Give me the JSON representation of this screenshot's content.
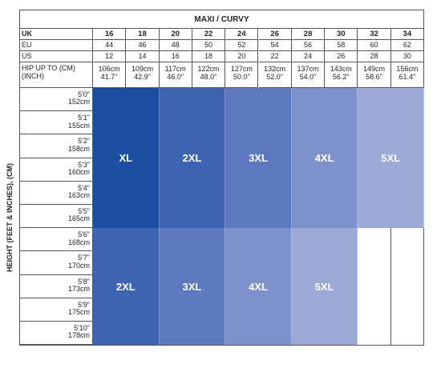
{
  "title": "MAXI / CURVY",
  "side_label": "HEIGHT (FEET & INCHES), (CM)",
  "rows": {
    "uk": {
      "label": "UK",
      "values": [
        "16",
        "18",
        "20",
        "22",
        "24",
        "26",
        "28",
        "30",
        "32",
        "34"
      ]
    },
    "eu": {
      "label": "EU",
      "values": [
        "44",
        "46",
        "48",
        "50",
        "52",
        "54",
        "56",
        "58",
        "60",
        "62"
      ]
    },
    "us": {
      "label": "US",
      "values": [
        "12",
        "14",
        "16",
        "18",
        "20",
        "22",
        "24",
        "26",
        "28",
        "30"
      ]
    },
    "hip": {
      "label": "HIP UP TO (CM)\n(INCH)",
      "cm": [
        "106cm",
        "109cm",
        "117cm",
        "122cm",
        "127cm",
        "132cm",
        "137cm",
        "143cm",
        "149cm",
        "156cm"
      ],
      "inch": [
        "41.7\"",
        "42.9\"",
        "46.0\"",
        "48.0\"",
        "50.0\"",
        "52.0\"",
        "54.0\"",
        "56.2\"",
        "58.6\"",
        "61.4\""
      ]
    }
  },
  "heights": [
    {
      "ft": "5'0\"",
      "cm": "152cm"
    },
    {
      "ft": "5'1\"",
      "cm": "155cm"
    },
    {
      "ft": "5'2\"",
      "cm": "158cm"
    },
    {
      "ft": "5'3\"",
      "cm": "160cm"
    },
    {
      "ft": "5'4\"",
      "cm": "163cm"
    },
    {
      "ft": "5'5\"",
      "cm": "165cm"
    },
    {
      "ft": "5'6\"",
      "cm": "168cm"
    },
    {
      "ft": "5'7\"",
      "cm": "170cm"
    },
    {
      "ft": "5'8\"",
      "cm": "173cm"
    },
    {
      "ft": "5'9\"",
      "cm": "175cm"
    },
    {
      "ft": "5'10\"",
      "cm": "178cm"
    }
  ],
  "upper_blocks": [
    {
      "label": "XL",
      "color": "#1b4fa3"
    },
    {
      "label": "2XL",
      "color": "#3d64b2"
    },
    {
      "label": "3XL",
      "color": "#5d78c0"
    },
    {
      "label": "4XL",
      "color": "#7f91cc"
    },
    {
      "label": "5XL",
      "color": "#9ca9d8"
    }
  ],
  "lower_blocks": [
    {
      "label": "2XL",
      "color": "#3d64b2"
    },
    {
      "label": "3XL",
      "color": "#5d78c0"
    },
    {
      "label": "4XL",
      "color": "#7f91cc"
    },
    {
      "label": "5XL",
      "color": "#9ca9d8"
    }
  ]
}
